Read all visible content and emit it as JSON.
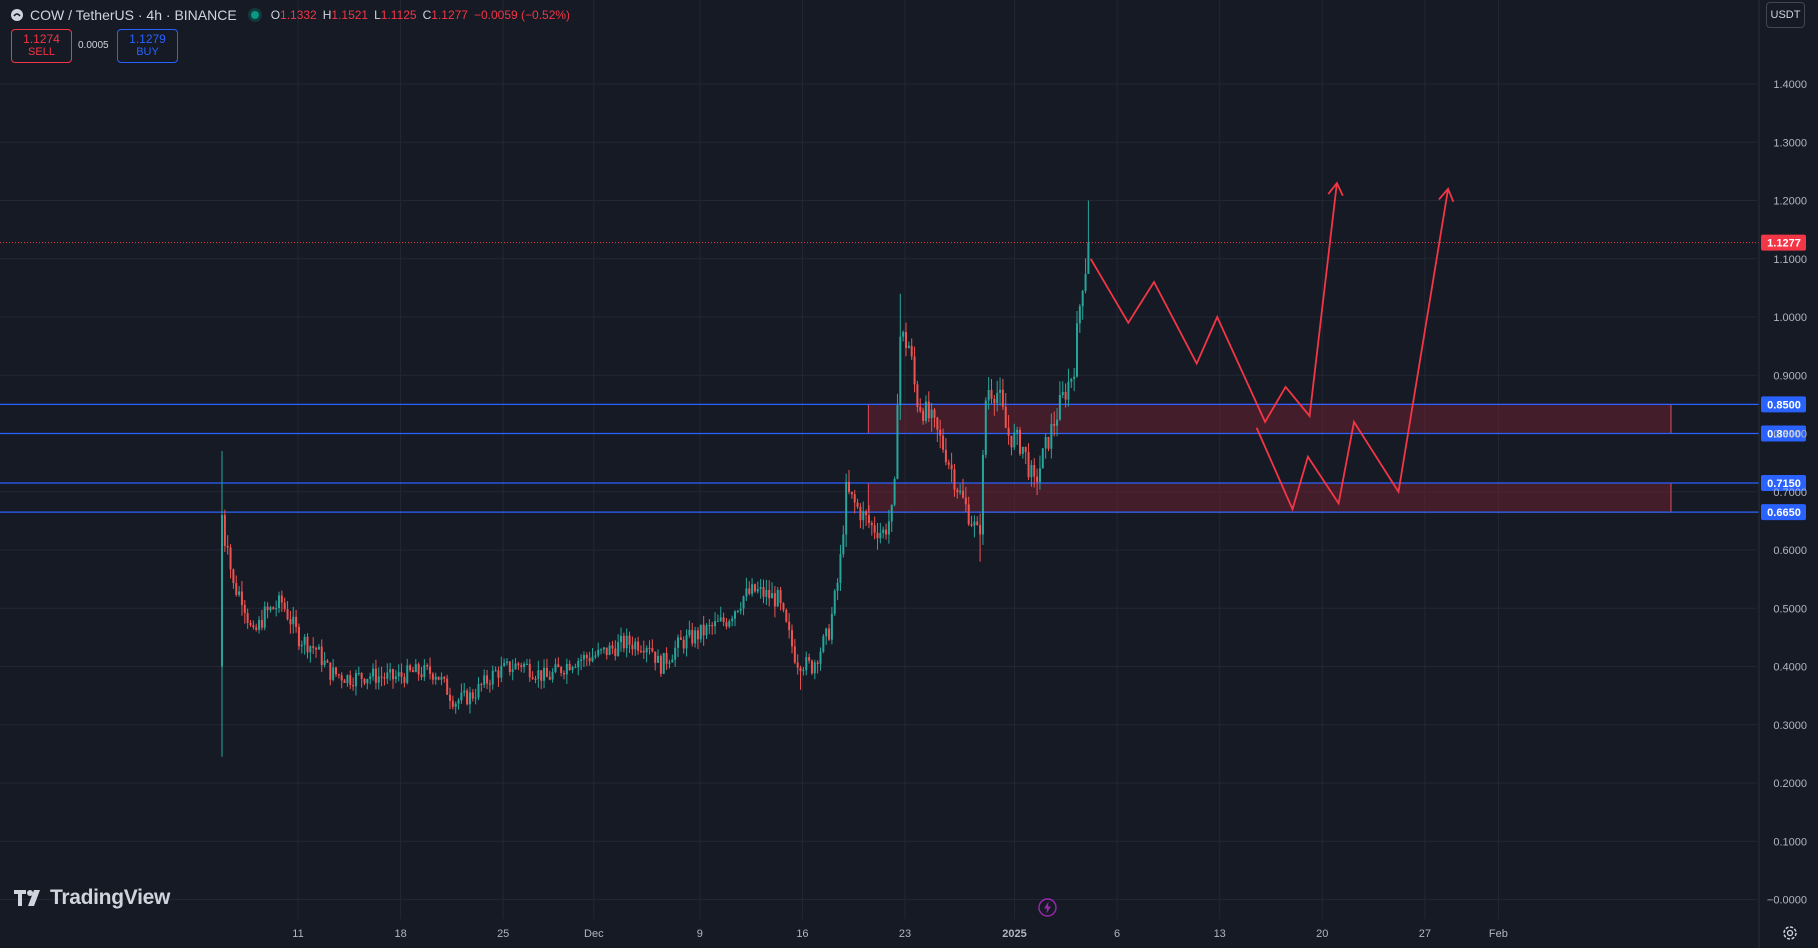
{
  "header": {
    "symbol": "COW / TetherUS · 4h · BINANCE",
    "open_label": "O",
    "open": "1.1332",
    "high_label": "H",
    "high": "1.1521",
    "low_label": "L",
    "low": "1.1125",
    "close_label": "C",
    "close": "1.1277",
    "change": "−0.0059 (−0.52%)"
  },
  "trade": {
    "sell_price": "1.1274",
    "sell_label": "SELL",
    "spread": "0.0005",
    "buy_price": "1.1279",
    "buy_label": "BUY"
  },
  "currency": "USDT",
  "brand": "TradingView",
  "colors": {
    "background": "#161a25",
    "grid": "#232733",
    "up": "#26a69a",
    "down": "#ef5350",
    "level_line": "#2962ff",
    "zone_fill": "#6b2030",
    "zone_border": "#e04a5a",
    "drawing": "#f23645",
    "last_price": "#f23645"
  },
  "chart_data": {
    "type": "candlestick",
    "symbol": "COW / TetherUS",
    "interval": "4h",
    "exchange": "BINANCE",
    "y_axis": {
      "min": 0,
      "max": 1.4,
      "ticks": [
        "1.4000",
        "1.3000",
        "1.2000",
        "1.1000",
        "1.0000",
        "0.9000",
        "0.8000",
        "0.7000",
        "0.6000",
        "0.5000",
        "0.4000",
        "0.3000",
        "0.2000",
        "0.1000",
        "−0.0000"
      ]
    },
    "x_axis": {
      "ticks": [
        "11",
        "18",
        "25",
        "Dec",
        "9",
        "16",
        "23",
        "2025",
        "6",
        "13",
        "20",
        "27",
        "Feb"
      ]
    },
    "price_path": [
      [
        0,
        0.4
      ],
      [
        0.2,
        0.66
      ],
      [
        0.6,
        0.54
      ],
      [
        1.2,
        0.52
      ],
      [
        1.8,
        0.45
      ],
      [
        2.5,
        0.49
      ],
      [
        3.5,
        0.51
      ],
      [
        4.5,
        0.45
      ],
      [
        5.5,
        0.43
      ],
      [
        6.3,
        0.39
      ],
      [
        7.5,
        0.38
      ],
      [
        8.6,
        0.385
      ],
      [
        10,
        0.38
      ],
      [
        11.2,
        0.39
      ],
      [
        12.5,
        0.39
      ],
      [
        13.6,
        0.34
      ],
      [
        14.6,
        0.35
      ],
      [
        16,
        0.39
      ],
      [
        17.5,
        0.405
      ],
      [
        19,
        0.38
      ],
      [
        20.5,
        0.41
      ],
      [
        22,
        0.42
      ],
      [
        23.5,
        0.44
      ],
      [
        25,
        0.44
      ],
      [
        25.6,
        0.4
      ],
      [
        26.8,
        0.44
      ],
      [
        28.2,
        0.46
      ],
      [
        29.5,
        0.48
      ],
      [
        30.5,
        0.52
      ],
      [
        31.2,
        0.53
      ],
      [
        32.5,
        0.515
      ],
      [
        33.6,
        0.41
      ],
      [
        34.5,
        0.4
      ],
      [
        35.5,
        0.46
      ],
      [
        36.1,
        0.56
      ],
      [
        36.5,
        0.7
      ],
      [
        37.2,
        0.67
      ],
      [
        38,
        0.64
      ],
      [
        38.7,
        0.63
      ],
      [
        39.3,
        0.67
      ],
      [
        39.6,
        0.97
      ],
      [
        40.2,
        0.95
      ],
      [
        40.6,
        0.86
      ],
      [
        41.5,
        0.82
      ],
      [
        42.3,
        0.77
      ],
      [
        43.1,
        0.7
      ],
      [
        43.7,
        0.66
      ],
      [
        44.3,
        0.62
      ],
      [
        44.7,
        0.88
      ],
      [
        45.4,
        0.87
      ],
      [
        45.9,
        0.8
      ],
      [
        46.8,
        0.78
      ],
      [
        47.5,
        0.71
      ],
      [
        48.1,
        0.77
      ],
      [
        48.9,
        0.84
      ],
      [
        49.8,
        0.91
      ],
      [
        50.3,
        1.06
      ],
      [
        50.8,
        1.1277
      ]
    ],
    "current_price": 1.1277,
    "horizontal_levels": [
      0.85,
      0.8,
      0.715,
      0.665
    ],
    "price_labels": [
      "0.8500",
      "0.8000",
      "0.7150",
      "0.6650"
    ],
    "last_price_label": "1.1277",
    "zones": [
      {
        "top": 0.85,
        "bottom": 0.8
      },
      {
        "top": 0.715,
        "bottom": 0.665
      }
    ],
    "projection_path_1": [
      [
        50.8,
        1.1
      ],
      [
        53,
        0.99
      ],
      [
        54.5,
        1.06
      ],
      [
        57,
        0.92
      ],
      [
        58.2,
        1.0
      ],
      [
        61,
        0.82
      ],
      [
        62.2,
        0.88
      ],
      [
        63.6,
        0.83
      ],
      [
        65.2,
        1.23
      ]
    ],
    "projection_path_2": [
      [
        60.5,
        0.81
      ],
      [
        62.6,
        0.67
      ],
      [
        63.5,
        0.76
      ],
      [
        65.3,
        0.68
      ],
      [
        66.2,
        0.82
      ],
      [
        68.8,
        0.7
      ],
      [
        71.7,
        1.22
      ]
    ]
  }
}
